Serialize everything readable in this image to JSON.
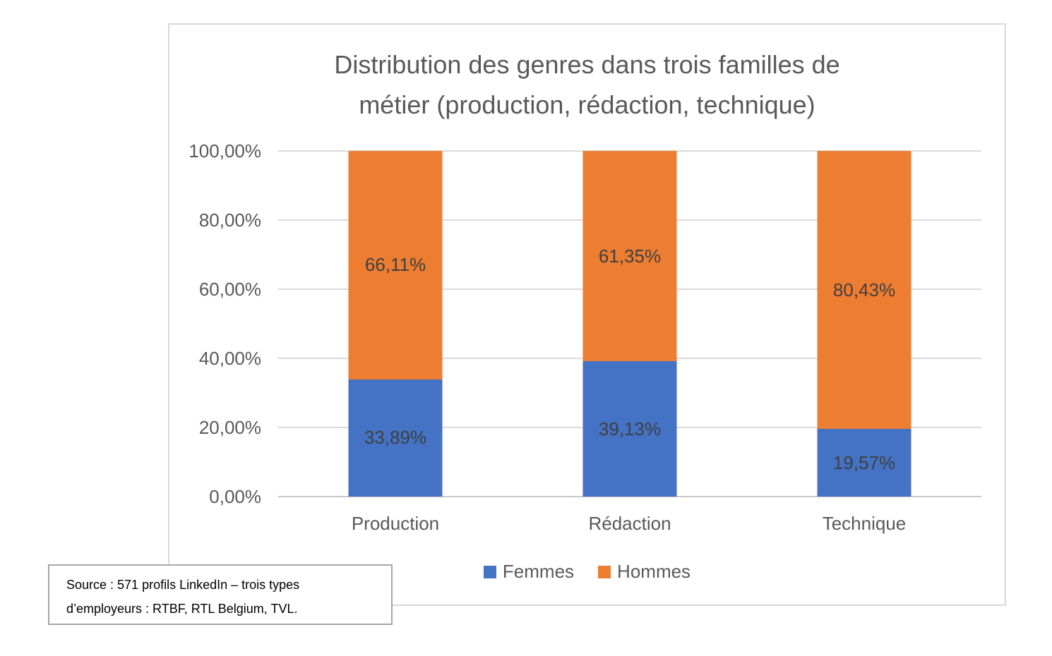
{
  "chart_data": {
    "type": "bar",
    "subtype": "stacked-100",
    "title": "Distribution des genres dans trois familles de métier (production, rédaction, technique)",
    "categories": [
      "Production",
      "Rédaction",
      "Technique"
    ],
    "series": [
      {
        "name": "Femmes",
        "color": "#4472C4",
        "values": [
          33.89,
          39.13,
          19.57
        ],
        "labels": [
          "33,89%",
          "39,13%",
          "19,57%"
        ]
      },
      {
        "name": "Hommes",
        "color": "#ED7D31",
        "values": [
          66.11,
          61.35,
          80.43
        ],
        "labels": [
          "66,11%",
          "61,35%",
          "80,43%"
        ]
      }
    ],
    "xlabel": "",
    "ylabel": "",
    "ylim": [
      0,
      100
    ],
    "y_ticks": [
      "0,00%",
      "20,00%",
      "40,00%",
      "60,00%",
      "80,00%",
      "100,00%"
    ],
    "grid": true,
    "legend_position": "bottom"
  },
  "colors": {
    "femmes": "#4472C4",
    "hommes": "#ED7D31",
    "gridline": "#DADADA",
    "chart_border": "#D8D8D8",
    "source_border": "#A6A6A6",
    "axis_text": "#595959",
    "data_label_text": "#404040",
    "title_text": "#595959"
  },
  "source_note": {
    "line1": "Source : 571 profils LinkedIn – trois types",
    "line2": "d’employeurs : RTBF, RTL Belgium, TVL."
  }
}
